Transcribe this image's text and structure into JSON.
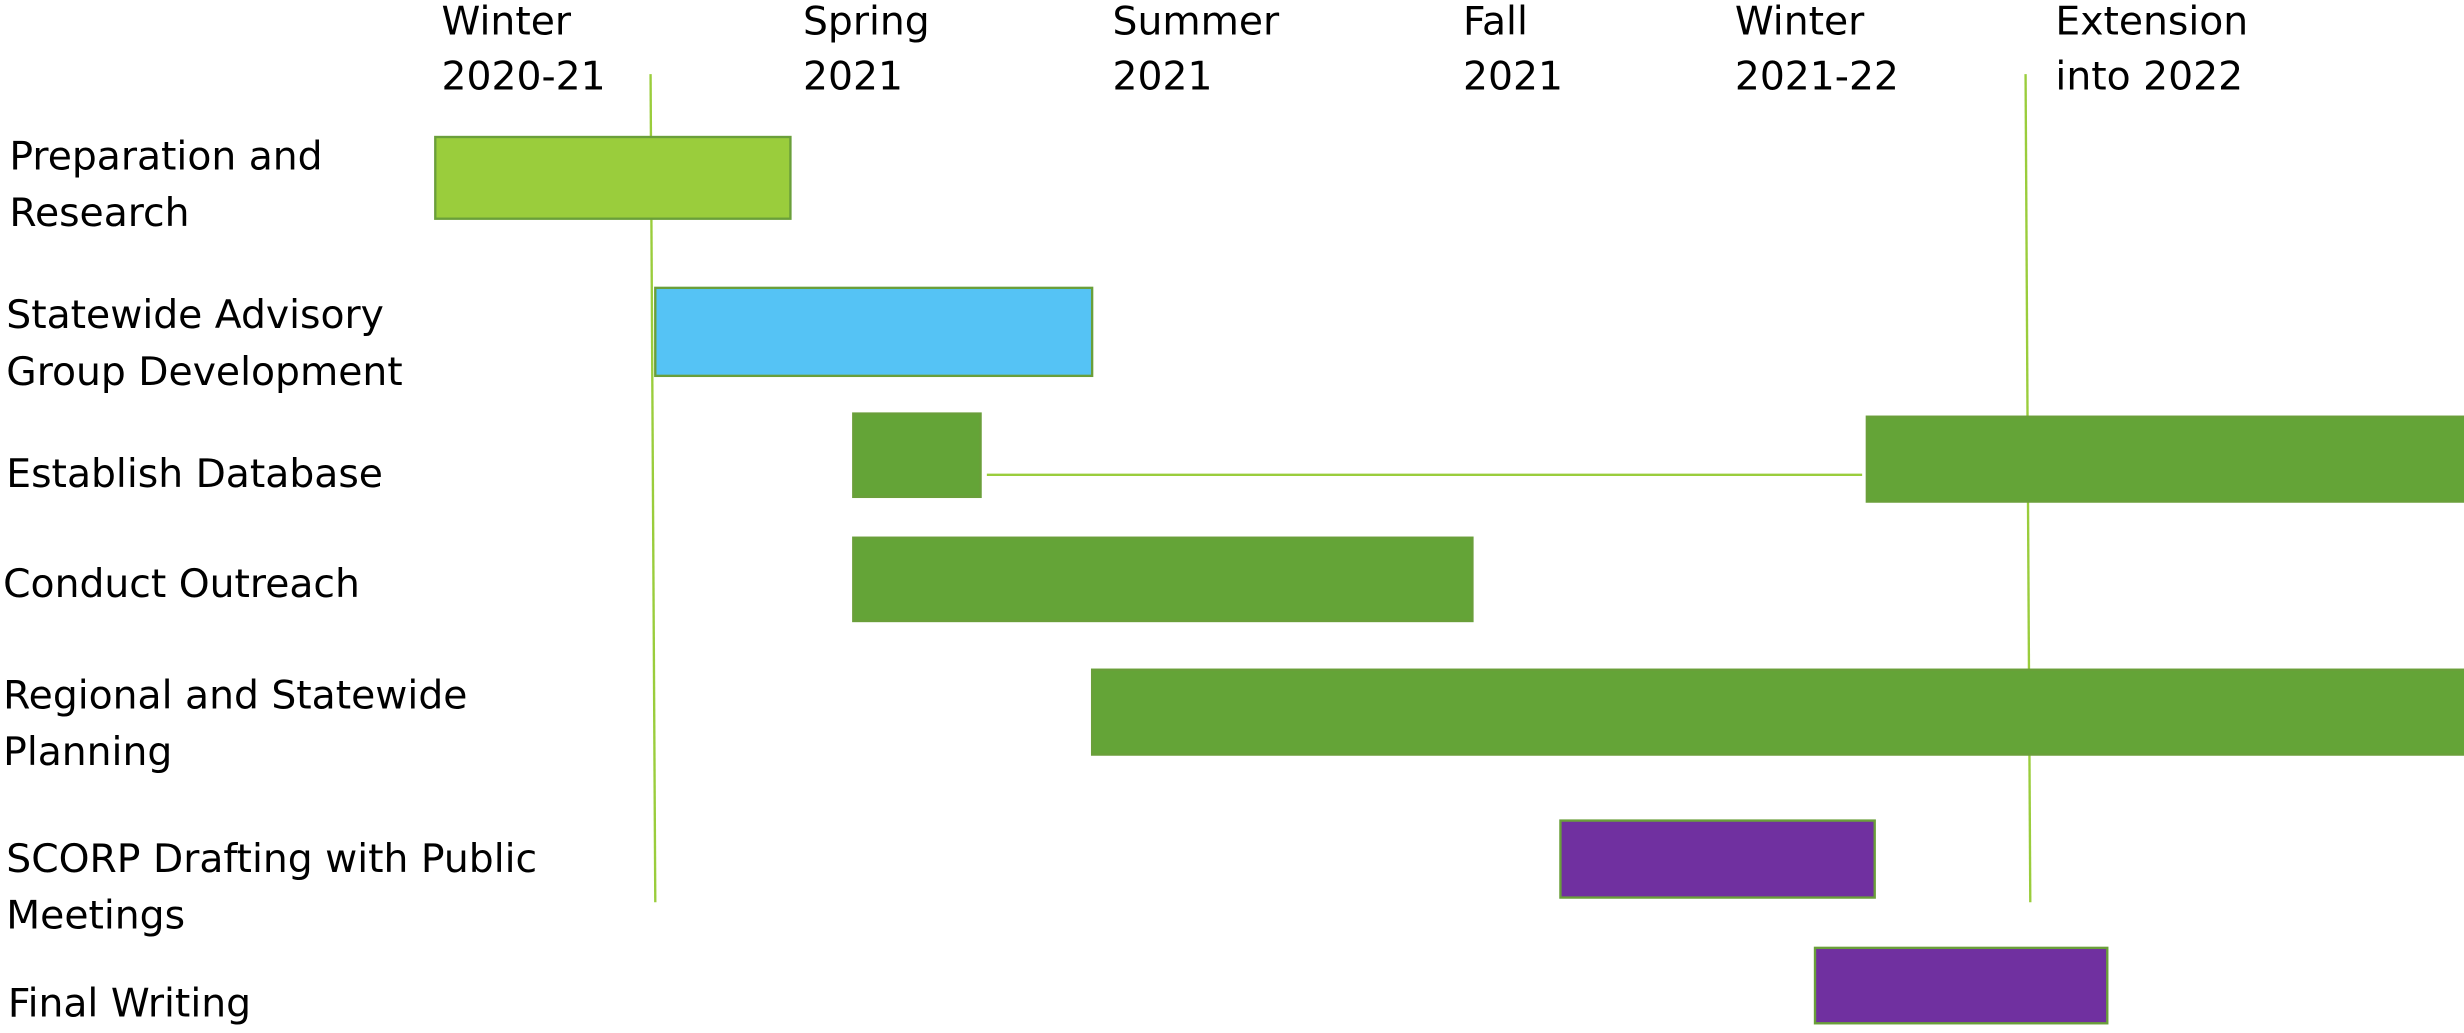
{
  "columns": [
    [
      "Winter",
      "2020-21"
    ],
    [
      "Spring",
      "2021"
    ],
    [
      "Summer",
      "2021"
    ],
    [
      "Fall",
      "2021"
    ],
    [
      "Winter",
      "2021-22"
    ],
    [
      "Extension",
      "into 2022"
    ]
  ],
  "tasks": [
    [
      "Preparation and",
      "Research"
    ],
    [
      "Statewide Advisory",
      "Group Development"
    ],
    [
      "Establish Database"
    ],
    [
      "Conduct Outreach"
    ],
    [
      "Regional and Statewide",
      "Planning"
    ],
    [
      "SCORP Drafting with Public",
      "Meetings"
    ],
    [
      "Final Writing"
    ]
  ]
}
